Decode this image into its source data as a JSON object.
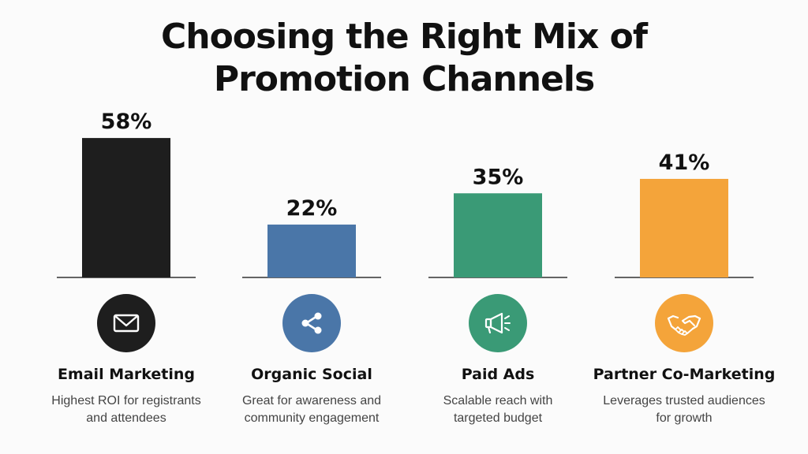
{
  "title": {
    "line1": "Choosing the Right Mix of",
    "line2": "Promotion Channels"
  },
  "chart_data": {
    "type": "bar",
    "title": "Choosing the Right Mix of Promotion Channels",
    "categories": [
      "Email Marketing",
      "Organic Social",
      "Paid Ads",
      "Partner Co-Marketing"
    ],
    "values": [
      58,
      22,
      35,
      41
    ],
    "value_labels": [
      "58%",
      "22%",
      "35%",
      "41%"
    ],
    "colors": [
      "#1e1e1e",
      "#4a76a8",
      "#3a9a76",
      "#f4a43a"
    ],
    "ylim": [
      0,
      60
    ],
    "grid": false,
    "legend": "none"
  },
  "channels": [
    {
      "name": "Email Marketing",
      "icon": "envelope-icon",
      "color": "#1e1e1e",
      "desc_line1": "Highest ROI for registrants",
      "desc_line2": "and attendees"
    },
    {
      "name": "Organic Social",
      "icon": "share-icon",
      "color": "#4a76a8",
      "desc_line1": "Great for awareness and",
      "desc_line2": "community engagement"
    },
    {
      "name": "Paid Ads",
      "icon": "megaphone-icon",
      "color": "#3a9a76",
      "desc_line1": "Scalable reach with",
      "desc_line2": "targeted budget"
    },
    {
      "name": "Partner Co-Marketing",
      "icon": "handshake-icon",
      "color": "#f4a43a",
      "desc_line1": "Leverages trusted audiences",
      "desc_line2": "for growth"
    }
  ]
}
